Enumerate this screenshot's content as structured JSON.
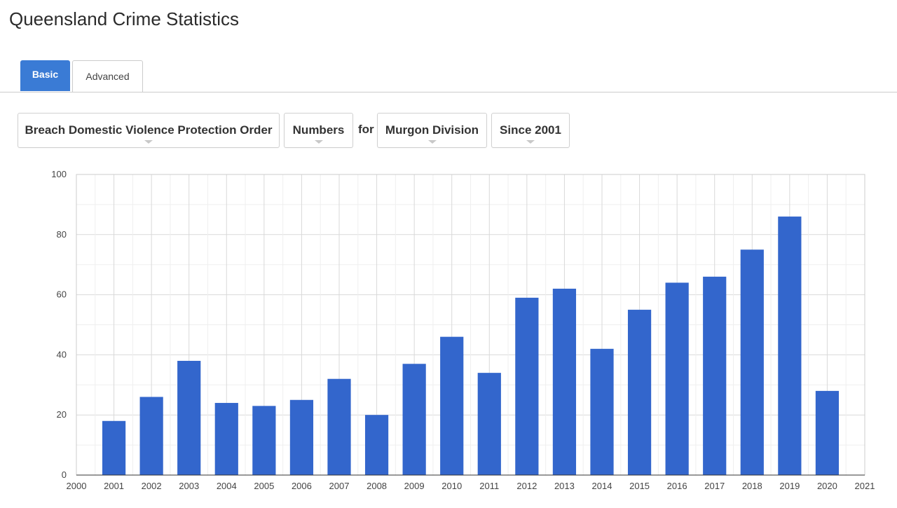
{
  "page": {
    "title": "Queensland Crime Statistics"
  },
  "tabs": [
    {
      "label": "Basic",
      "active": true
    },
    {
      "label": "Advanced",
      "active": false
    }
  ],
  "filters": {
    "offence": "Breach Domestic Violence Protection Order",
    "measure": "Numbers",
    "connector": "for",
    "region": "Murgon Division",
    "period": "Since 2001"
  },
  "colors": {
    "accent": "#3a7bd5",
    "bar": "#3366cc",
    "grid": "#e6e6e6"
  },
  "chart_data": {
    "type": "bar",
    "x": [
      2001,
      2002,
      2003,
      2004,
      2005,
      2006,
      2007,
      2008,
      2009,
      2010,
      2011,
      2012,
      2013,
      2014,
      2015,
      2016,
      2017,
      2018,
      2019,
      2020
    ],
    "values": [
      18,
      26,
      38,
      24,
      23,
      25,
      32,
      20,
      37,
      46,
      34,
      59,
      62,
      42,
      55,
      64,
      66,
      75,
      86,
      28
    ],
    "xlim": [
      2000,
      2021
    ],
    "ylim": [
      0,
      100
    ],
    "yticks": [
      0,
      20,
      40,
      60,
      80,
      100
    ],
    "xticks": [
      2000,
      2001,
      2002,
      2003,
      2004,
      2005,
      2006,
      2007,
      2008,
      2009,
      2010,
      2011,
      2012,
      2013,
      2014,
      2015,
      2016,
      2017,
      2018,
      2019,
      2020,
      2021
    ],
    "grid": true,
    "legend": "none"
  }
}
